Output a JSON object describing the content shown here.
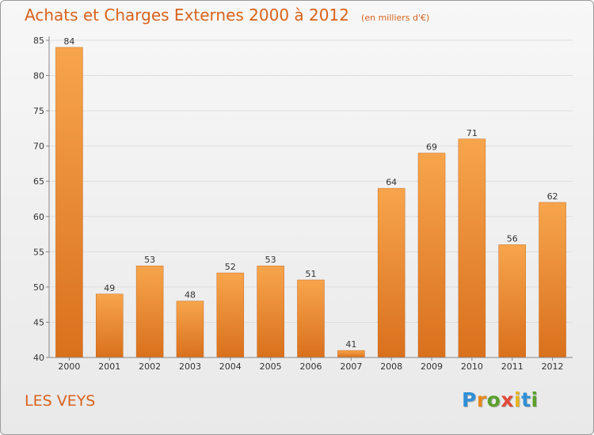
{
  "header": {
    "title": "Achats et Charges Externes 2000 à 2012",
    "subtitle": "(en milliers d'€)"
  },
  "footer": {
    "location": "LES VEYS",
    "brand_letters": [
      "P",
      "r",
      "o",
      "x",
      "i",
      "t",
      "i"
    ],
    "brand_colors": [
      "#2f8fd6",
      "#e8891c",
      "#5aa02c",
      "#e04a3a",
      "#e8b41c",
      "#2f8fd6",
      "#5aa02c"
    ]
  },
  "colors": {
    "bar_top": "#f7a54c",
    "bar_bottom": "#d9701c",
    "title": "#d9621d",
    "grid": "#dddddd"
  },
  "chart_data": {
    "type": "bar",
    "title": "Achats et Charges Externes 2000 à 2012",
    "subtitle": "(en milliers d'€)",
    "categories": [
      "2000",
      "2001",
      "2002",
      "2003",
      "2004",
      "2005",
      "2006",
      "2007",
      "2008",
      "2009",
      "2010",
      "2011",
      "2012"
    ],
    "values": [
      84,
      49,
      53,
      48,
      52,
      53,
      51,
      41,
      64,
      69,
      71,
      56,
      62
    ],
    "ylim": [
      40,
      85
    ],
    "yticks": [
      40,
      45,
      50,
      55,
      60,
      65,
      70,
      75,
      80,
      85
    ],
    "xlabel": "",
    "ylabel": "",
    "grid": true
  }
}
